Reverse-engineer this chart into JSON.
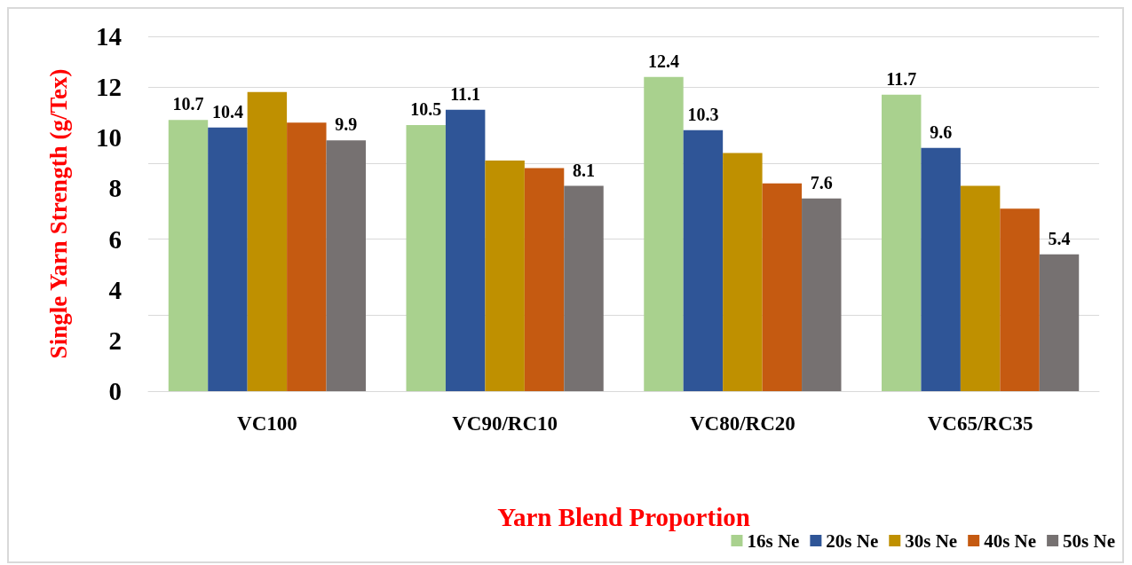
{
  "chart_data": {
    "type": "bar",
    "xlabel": "Yarn Blend Proportion",
    "ylabel": "Single Yarn Strength (g/Tex)",
    "categories": [
      "VC100",
      "VC90/RC10",
      "VC80/RC20",
      "VC65/RC35"
    ],
    "series": [
      {
        "name": "16s Ne",
        "color": "#a9d18e",
        "values": [
          10.7,
          10.5,
          12.4,
          11.7
        ],
        "value_labels": [
          "10.7",
          "10.5",
          "12.4",
          "11.7"
        ]
      },
      {
        "name": "20s Ne",
        "color": "#2f5597",
        "values": [
          10.4,
          11.1,
          10.3,
          9.6
        ],
        "value_labels": [
          "10.4",
          "11.1",
          "10.3",
          "9.6"
        ]
      },
      {
        "name": "30s Ne",
        "color": "#bf9000",
        "values": [
          11.8,
          9.1,
          9.4,
          8.1
        ],
        "value_labels": [
          null,
          null,
          null,
          null
        ]
      },
      {
        "name": "40s Ne",
        "color": "#c55a11",
        "values": [
          10.6,
          8.8,
          8.2,
          7.2
        ],
        "value_labels": [
          null,
          null,
          null,
          null
        ]
      },
      {
        "name": "50s Ne",
        "color": "#767171",
        "values": [
          9.9,
          8.1,
          7.6,
          5.4
        ],
        "value_labels": [
          "9.9",
          "8.1",
          "7.6",
          "5.4"
        ]
      }
    ],
    "ylim": [
      0,
      14
    ],
    "yticks": [
      0,
      2,
      4,
      6,
      8,
      10,
      12,
      14
    ],
    "grid": "y",
    "legend": "bottom right"
  }
}
